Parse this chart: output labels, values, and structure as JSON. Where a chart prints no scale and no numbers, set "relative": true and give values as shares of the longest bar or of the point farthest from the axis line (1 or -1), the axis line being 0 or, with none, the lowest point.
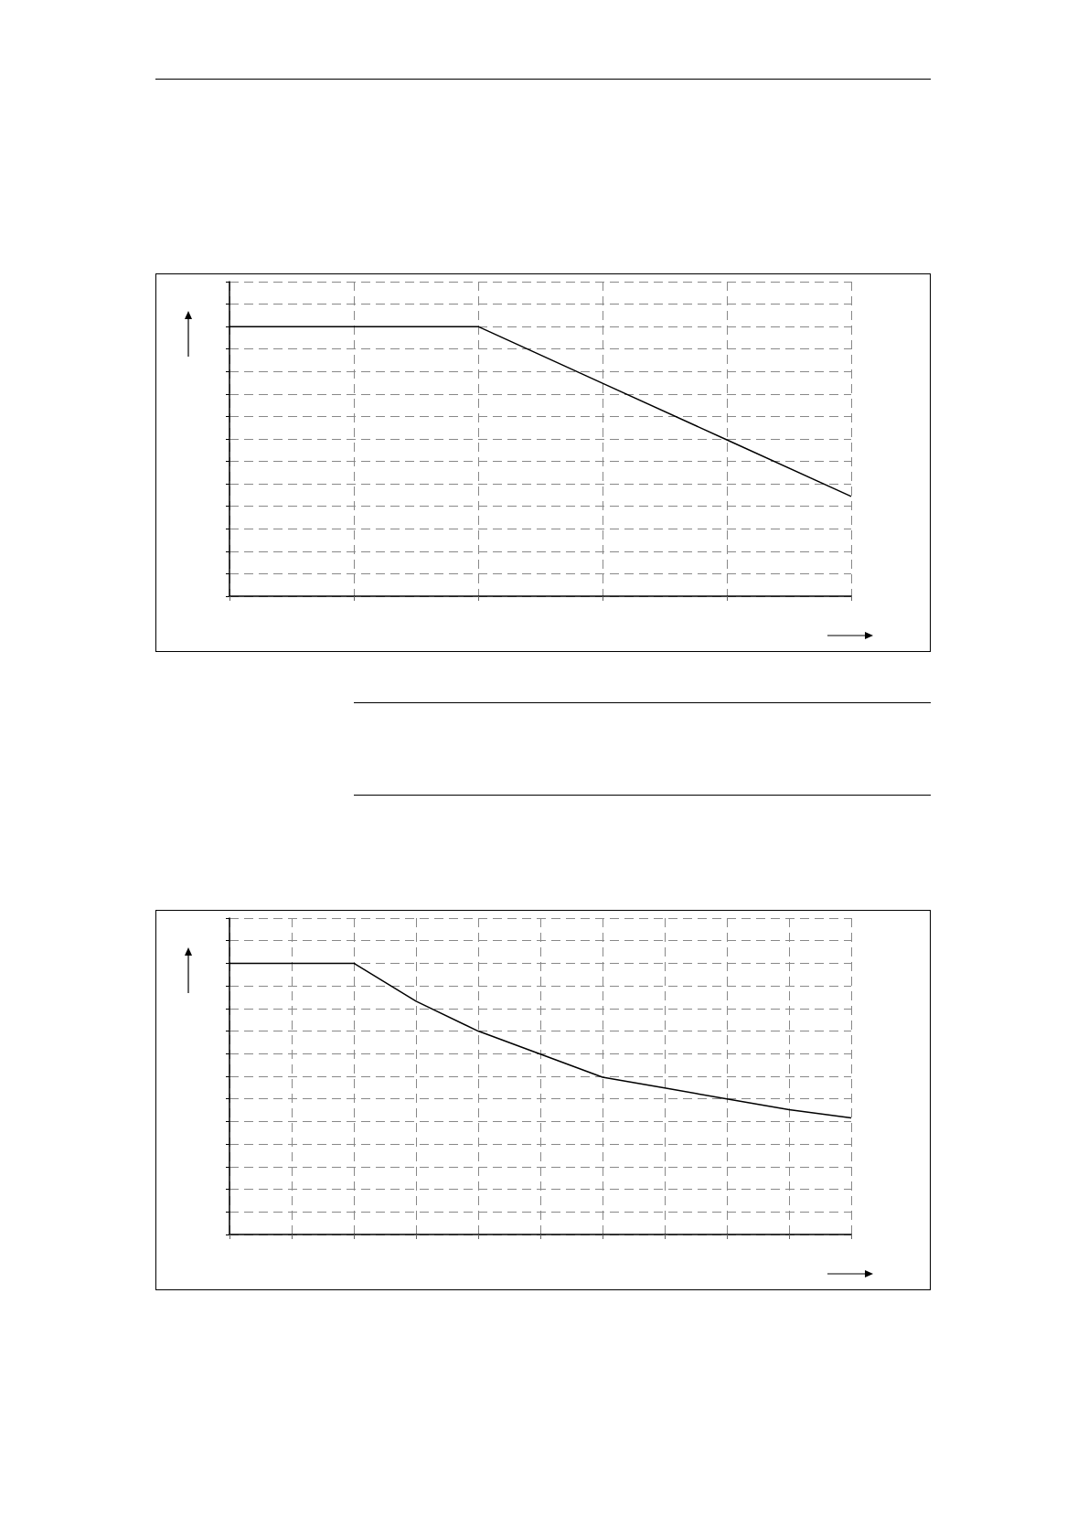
{
  "chart_data": [
    {
      "type": "line",
      "relative": true,
      "categories": [
        null,
        null,
        null,
        null,
        null,
        null
      ],
      "series": [
        {
          "color": "#000000",
          "values": [
            1,
            1,
            1,
            0.79,
            0.58,
            0.37
          ]
        }
      ],
      "grid": true,
      "marker": "none",
      "line_style": "solid"
    },
    {
      "type": "line",
      "relative": true,
      "categories": [
        null,
        null,
        null,
        null,
        null,
        null,
        null,
        null,
        null,
        null,
        null
      ],
      "series": [
        {
          "color": "#000000",
          "values": [
            1,
            1,
            1,
            0.86,
            0.75,
            0.665,
            0.58,
            0.54,
            0.5,
            0.46,
            0.43
          ]
        }
      ],
      "grid": true,
      "marker": "none",
      "line_style": "solid"
    }
  ]
}
